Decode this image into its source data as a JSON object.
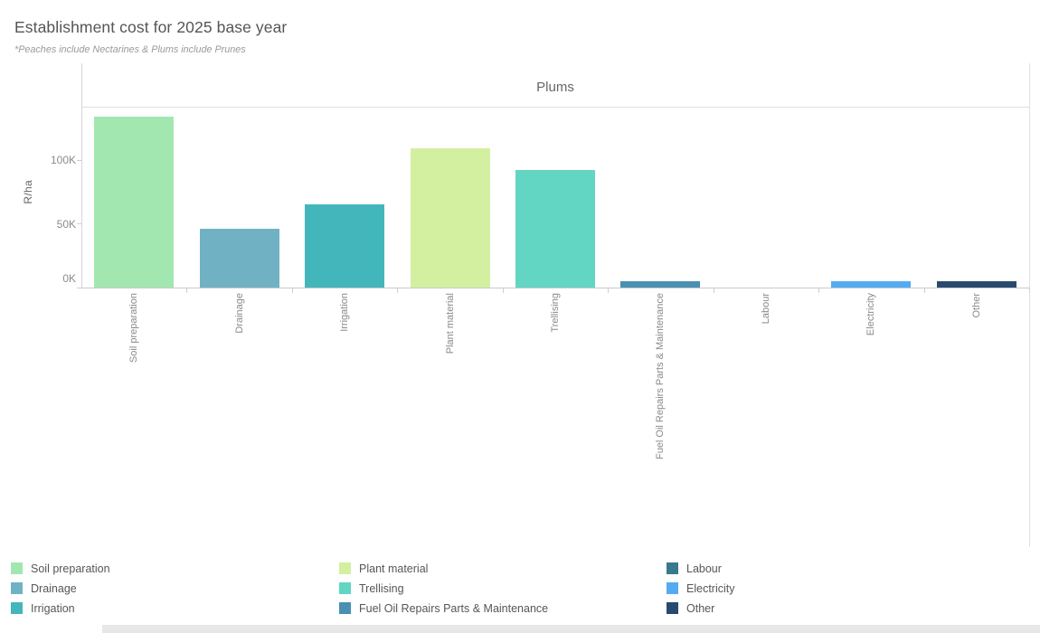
{
  "header": {
    "title": "Establishment cost for 2025 base year",
    "subtitle": "*Peaches include Nectarines & Plums include Prunes"
  },
  "chart_data": {
    "type": "bar",
    "panel_title": "Plums",
    "ylabel": "R/ha",
    "value_unit": "thousand R/ha",
    "ylim": [
      0,
      142
    ],
    "y_ticks": [
      {
        "label": "0K",
        "value": 0
      },
      {
        "label": "50K",
        "value": 50
      },
      {
        "label": "100K",
        "value": 100
      }
    ],
    "grid": false,
    "legend_position": "bottom",
    "categories": [
      "Soil preparation",
      "Drainage",
      "Irrigation",
      "Plant material",
      "Trellising",
      "Fuel Oil Repairs Parts & Maintenance",
      "Labour",
      "Electricity",
      "Other"
    ],
    "values": [
      134,
      46,
      65,
      109,
      92,
      5,
      0,
      5,
      5
    ],
    "colors": [
      "#a3e7b0",
      "#70b2c4",
      "#43b6bc",
      "#d3f0a1",
      "#62d5c3",
      "#4a90b2",
      "#38798f",
      "#55abf2",
      "#294a6f"
    ]
  },
  "legend": {
    "columns": [
      [
        {
          "label": "Soil preparation",
          "color": "#a3e7b0"
        },
        {
          "label": "Drainage",
          "color": "#70b2c4"
        },
        {
          "label": "Irrigation",
          "color": "#43b6bc"
        }
      ],
      [
        {
          "label": "Plant material",
          "color": "#d3f0a1"
        },
        {
          "label": "Trellising",
          "color": "#62d5c3"
        },
        {
          "label": "Fuel Oil Repairs Parts & Maintenance",
          "color": "#4a90b2"
        }
      ],
      [
        {
          "label": "Labour",
          "color": "#38798f"
        },
        {
          "label": "Electricity",
          "color": "#55abf2"
        },
        {
          "label": "Other",
          "color": "#294a6f"
        }
      ]
    ]
  }
}
